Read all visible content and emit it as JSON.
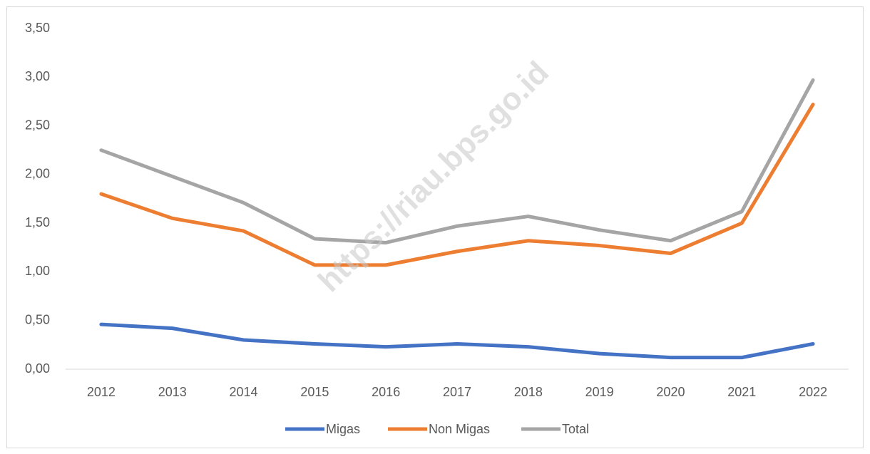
{
  "chart_data": {
    "type": "line",
    "categories": [
      "2012",
      "2013",
      "2014",
      "2015",
      "2016",
      "2017",
      "2018",
      "2019",
      "2020",
      "2021",
      "2022"
    ],
    "series": [
      {
        "name": "Migas",
        "color": "#4472c4",
        "values": [
          0.46,
          0.42,
          0.3,
          0.26,
          0.23,
          0.26,
          0.23,
          0.16,
          0.12,
          0.12,
          0.26
        ]
      },
      {
        "name": "Non Migas",
        "color": "#ed7d31",
        "values": [
          1.8,
          1.55,
          1.42,
          1.07,
          1.07,
          1.21,
          1.32,
          1.27,
          1.19,
          1.5,
          2.72
        ]
      },
      {
        "name": "Total",
        "color": "#a5a5a5",
        "values": [
          2.25,
          1.98,
          1.71,
          1.34,
          1.3,
          1.47,
          1.57,
          1.43,
          1.32,
          1.62,
          2.97
        ]
      }
    ],
    "ylim": [
      0,
      3.5
    ],
    "yticks": [
      {
        "value": 0,
        "label": "0,00"
      },
      {
        "value": 0.5,
        "label": "0,50"
      },
      {
        "value": 1,
        "label": "1,00"
      },
      {
        "value": 1.5,
        "label": "1,50"
      },
      {
        "value": 2,
        "label": "2,00"
      },
      {
        "value": 2.5,
        "label": "2,50"
      },
      {
        "value": 3,
        "label": "3,00"
      },
      {
        "value": 3.5,
        "label": "3,50"
      }
    ],
    "legend": "bottom",
    "watermark": "https://riau.bps.go.id"
  }
}
